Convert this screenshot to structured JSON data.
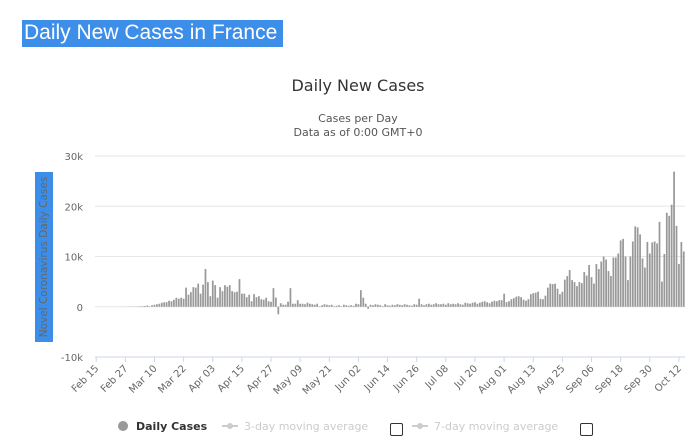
{
  "header": {
    "title": "Daily New Cases in France"
  },
  "chart_data": {
    "type": "bar",
    "title": "Daily New Cases",
    "subtitle": [
      "Cases per Day",
      "Data as of 0:00 GMT+0"
    ],
    "y_label": "Novel Coronavirus Daily Cases",
    "categories": [
      "Feb 15",
      null,
      null,
      null,
      null,
      null,
      null,
      null,
      null,
      null,
      null,
      null,
      "Feb 27",
      null,
      null,
      null,
      null,
      null,
      null,
      null,
      null,
      null,
      null,
      null,
      "Mar 10",
      null,
      null,
      null,
      null,
      null,
      null,
      null,
      null,
      null,
      null,
      null,
      "Mar 22",
      null,
      null,
      null,
      null,
      null,
      null,
      null,
      null,
      null,
      null,
      null,
      "Apr 03",
      null,
      null,
      null,
      null,
      null,
      null,
      null,
      null,
      null,
      null,
      null,
      "Apr 15",
      null,
      null,
      null,
      null,
      null,
      null,
      null,
      null,
      null,
      null,
      null,
      "Apr 27",
      null,
      null,
      null,
      null,
      null,
      null,
      null,
      null,
      null,
      null,
      null,
      "May 09",
      null,
      null,
      null,
      null,
      null,
      null,
      null,
      null,
      null,
      null,
      null,
      "May 21",
      null,
      null,
      null,
      null,
      null,
      null,
      null,
      null,
      null,
      null,
      null,
      "Jun 02",
      null,
      null,
      null,
      null,
      null,
      null,
      null,
      null,
      null,
      null,
      null,
      "Jun 14",
      null,
      null,
      null,
      null,
      null,
      null,
      null,
      null,
      null,
      null,
      null,
      "Jun 26",
      null,
      null,
      null,
      null,
      null,
      null,
      null,
      null,
      null,
      null,
      null,
      "Jul 08",
      null,
      null,
      null,
      null,
      null,
      null,
      null,
      null,
      null,
      null,
      null,
      "Jul 20",
      null,
      null,
      null,
      null,
      null,
      null,
      null,
      null,
      null,
      null,
      null,
      "Aug 01",
      null,
      null,
      null,
      null,
      null,
      null,
      null,
      null,
      null,
      null,
      null,
      "Aug 13",
      null,
      null,
      null,
      null,
      null,
      null,
      null,
      null,
      null,
      null,
      null,
      "Aug 25",
      null,
      null,
      null,
      null,
      null,
      null,
      null,
      null,
      null,
      null,
      null,
      "Sep 06",
      null,
      null,
      null,
      null,
      null,
      null,
      null,
      null,
      null,
      null,
      null,
      "Sep 18",
      null,
      null,
      null,
      null,
      null,
      null,
      null,
      null,
      null,
      null,
      null,
      "Sep 30",
      null,
      null,
      null,
      null,
      null,
      null,
      null,
      null,
      null,
      null,
      null,
      "Oct 12",
      null,
      null
    ],
    "series": [
      {
        "name": "Daily Cases",
        "color": "#999999",
        "values": [
          0,
          0,
          0,
          0,
          0,
          0,
          0,
          0,
          0,
          0,
          0,
          2,
          4,
          20,
          43,
          30,
          30,
          60,
          80,
          100,
          150,
          250,
          100,
          300,
          400,
          500,
          600,
          800,
          900,
          900,
          1200,
          1100,
          1400,
          1800,
          1600,
          1800,
          1600,
          3800,
          2400,
          2900,
          3900,
          3800,
          4600,
          2600,
          4400,
          7500,
          4900,
          2100,
          5200,
          4300,
          1800,
          3900,
          3100,
          4300,
          4000,
          4300,
          3100,
          2900,
          3000,
          5500,
          2600,
          2600,
          1900,
          2400,
          1100,
          2500,
          1900,
          2100,
          1500,
          1400,
          1800,
          1100,
          1000,
          3700,
          1800,
          -1500,
          700,
          400,
          400,
          1000,
          3700,
          600,
          600,
          1300,
          600,
          600,
          500,
          800,
          600,
          500,
          400,
          600,
          100,
          300,
          500,
          400,
          300,
          400,
          100,
          200,
          300,
          100,
          400,
          300,
          200,
          300,
          200,
          600,
          500,
          3300,
          1800,
          600,
          -400,
          400,
          300,
          500,
          400,
          300,
          100,
          500,
          300,
          200,
          400,
          300,
          500,
          400,
          300,
          500,
          400,
          300,
          200,
          500,
          400,
          1600,
          500,
          300,
          500,
          600,
          400,
          500,
          700,
          500,
          500,
          600,
          400,
          700,
          500,
          600,
          500,
          700,
          500,
          400,
          800,
          700,
          600,
          800,
          900,
          600,
          800,
          1000,
          1100,
          900,
          700,
          1000,
          1200,
          1100,
          1300,
          1300,
          2600,
          900,
          1100,
          1500,
          1700,
          2000,
          2100,
          1900,
          1400,
          1200,
          1500,
          2500,
          2700,
          2800,
          3000,
          1600,
          1500,
          2200,
          3800,
          4600,
          4500,
          4600,
          3600,
          2500,
          3000,
          5400,
          6100,
          7300,
          5300,
          4900,
          4100,
          4900,
          4700,
          6900,
          6200,
          8300,
          5900,
          4600,
          8500,
          7500,
          9000,
          10000,
          9400,
          7100,
          6100,
          9800,
          9800,
          10600,
          13200,
          13500,
          10000,
          5300,
          10000,
          13000,
          16000,
          15800,
          14400,
          9600,
          7800,
          12900,
          10600,
          12800,
          13000,
          12600,
          16900,
          5000,
          10500,
          18700,
          18100,
          20300,
          26900,
          16100,
          8500,
          12900,
          11000
        ]
      }
    ],
    "legend_extra": [
      {
        "name": "3-day moving average",
        "color": "#cccccc"
      },
      {
        "name": "7-day moving average",
        "color": "#cccccc"
      }
    ],
    "ylim": [
      -10000,
      30000
    ],
    "yticks": [
      {
        "value": -10000,
        "label": "-10k"
      },
      0,
      {
        "value": 10000,
        "label": "10k"
      },
      {
        "value": 20000,
        "label": "20k"
      },
      {
        "value": 30000,
        "label": "30k"
      }
    ],
    "grid": true
  }
}
